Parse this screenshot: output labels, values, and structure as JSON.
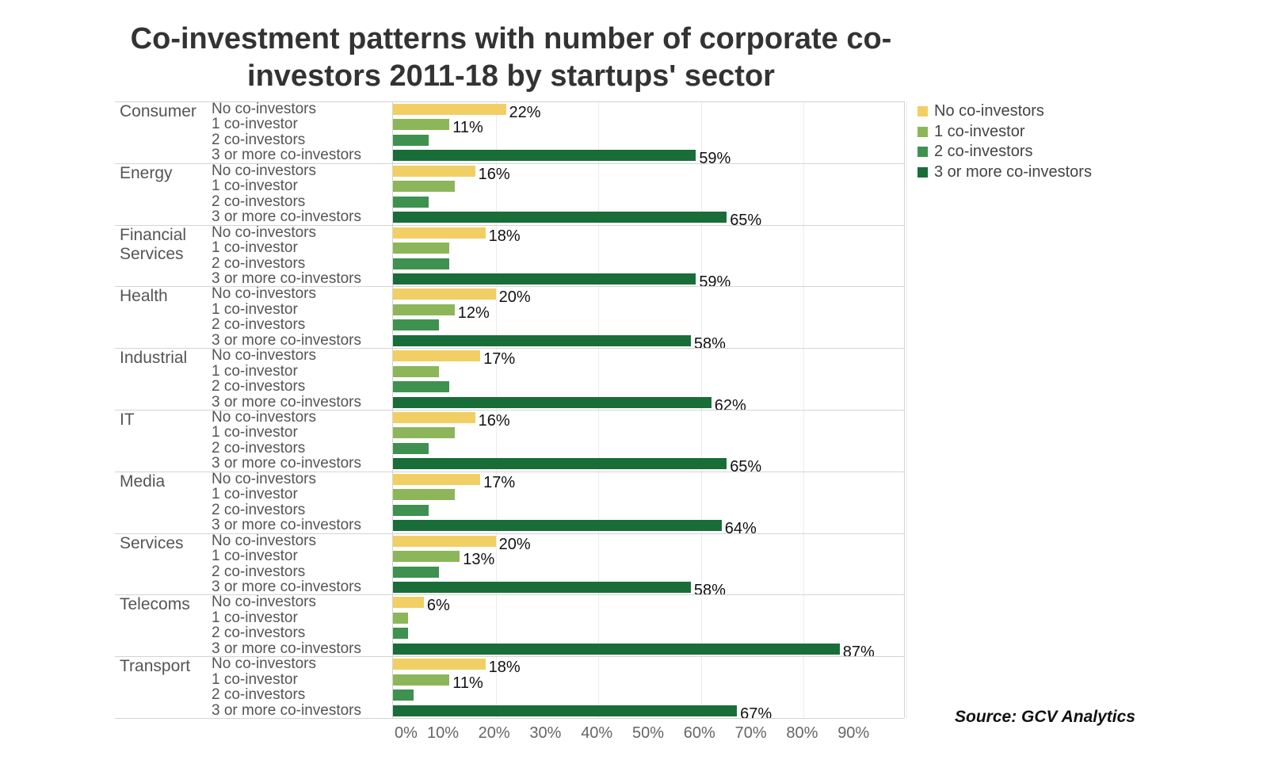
{
  "chart_data": {
    "type": "bar",
    "orientation": "horizontal",
    "title": "Co-investment patterns with number of corporate co-investors 2011-18 by startups' sector",
    "categories": [
      "Consumer",
      "Energy",
      "Financial Services",
      "Health",
      "Industrial",
      "IT",
      "Media",
      "Services",
      "Telecoms",
      "Transport"
    ],
    "subcategories": [
      "No co-investors",
      "1 co-investor",
      "2 co-investors",
      "3 or more co-investors"
    ],
    "series": [
      {
        "name": "No co-investors",
        "color": "#f2cf64",
        "values": [
          22,
          16,
          18,
          20,
          17,
          16,
          17,
          20,
          6,
          18
        ],
        "labeled": [
          true,
          true,
          true,
          true,
          true,
          true,
          true,
          true,
          true,
          true
        ]
      },
      {
        "name": "1 co-investor",
        "color": "#8db65a",
        "values": [
          11,
          12,
          11,
          12,
          9,
          12,
          12,
          13,
          3,
          11
        ],
        "labeled": [
          true,
          false,
          false,
          true,
          false,
          false,
          false,
          true,
          false,
          true
        ]
      },
      {
        "name": "2 co-investors",
        "color": "#3f914f",
        "values": [
          7,
          7,
          11,
          9,
          11,
          7,
          7,
          9,
          3,
          4
        ],
        "labeled": [
          false,
          false,
          false,
          false,
          false,
          false,
          false,
          false,
          false,
          false
        ]
      },
      {
        "name": "3 or more co-investors",
        "color": "#186d38",
        "values": [
          59,
          65,
          59,
          58,
          62,
          65,
          64,
          58,
          87,
          67
        ],
        "labeled": [
          true,
          true,
          true,
          true,
          true,
          true,
          true,
          true,
          true,
          true
        ]
      }
    ],
    "xticks": [
      "0%",
      "10%",
      "20%",
      "30%",
      "40%",
      "50%",
      "60%",
      "70%",
      "80%",
      "90%"
    ],
    "xlim": [
      0,
      100
    ],
    "grid": true,
    "legend": "top-right",
    "source": "Source: GCV Analytics"
  }
}
